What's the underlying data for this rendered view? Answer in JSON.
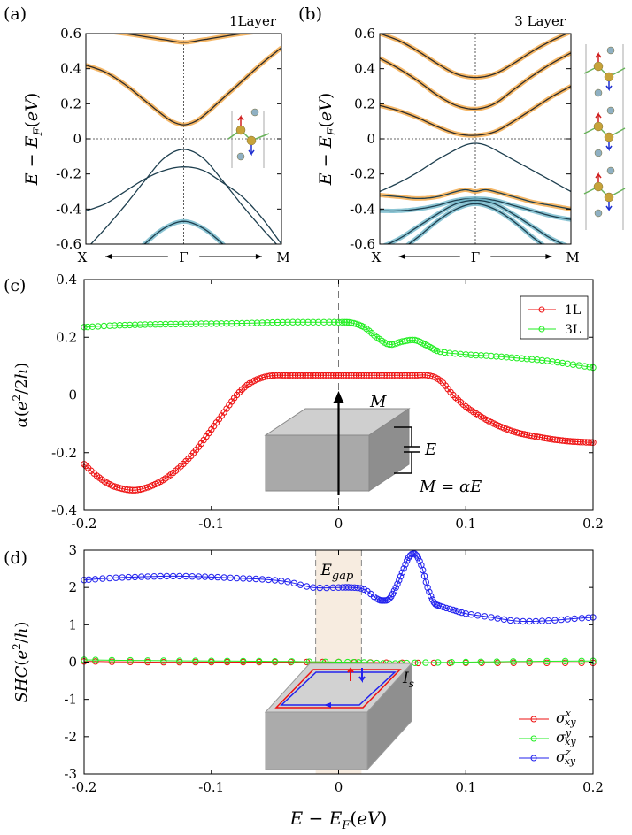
{
  "chart_data": [
    {
      "panel": "(a)",
      "type": "line",
      "title": "1Layer",
      "ylabel": "E − E_F(eV)",
      "ylim": [
        -0.6,
        0.6
      ],
      "yticks": [
        "0.6",
        "0.4",
        "0.2",
        "0",
        "-0.2",
        "-0.4",
        "-0.6"
      ],
      "xtick_labels": {
        "left": "X",
        "center": "Γ",
        "right": "M"
      },
      "bands": [
        {
          "color": "#2b2b2b",
          "highlight": "#f2a541",
          "x": [
            0,
            0.2,
            0.4,
            0.5,
            0.6,
            0.8,
            1
          ],
          "y": [
            0.625,
            0.6,
            0.565,
            0.55,
            0.565,
            0.6,
            0.625
          ]
        },
        {
          "color": "#2b2b2b",
          "highlight": "#f2a541",
          "x": [
            0,
            0.1,
            0.2,
            0.3,
            0.4,
            0.45,
            0.5,
            0.55,
            0.6,
            0.7,
            0.8,
            0.9,
            1
          ],
          "y": [
            0.42,
            0.38,
            0.31,
            0.22,
            0.13,
            0.095,
            0.08,
            0.095,
            0.13,
            0.23,
            0.33,
            0.43,
            0.52
          ]
        },
        {
          "color": "#1e3f4f",
          "highlight": "",
          "x": [
            0,
            0.1,
            0.2,
            0.3,
            0.4,
            0.5,
            0.6,
            0.7,
            0.8,
            0.9,
            1
          ],
          "y": [
            -0.63,
            -0.51,
            -0.38,
            -0.24,
            -0.11,
            -0.06,
            -0.11,
            -0.24,
            -0.38,
            -0.51,
            -0.63
          ]
        },
        {
          "color": "#1e3f4f",
          "highlight": "",
          "x": [
            0,
            0.1,
            0.2,
            0.3,
            0.4,
            0.5,
            0.6,
            0.7,
            0.8,
            0.9,
            1
          ],
          "y": [
            -0.41,
            -0.37,
            -0.3,
            -0.23,
            -0.18,
            -0.16,
            -0.18,
            -0.25,
            -0.33,
            -0.45,
            -0.6
          ]
        },
        {
          "color": "#1e3f4f",
          "highlight": "#6fb7c9",
          "x": [
            0,
            0.1,
            0.2,
            0.3,
            0.4,
            0.5,
            0.6,
            0.7,
            0.8,
            0.9,
            1
          ],
          "y": [
            -0.88,
            -0.8,
            -0.71,
            -0.6,
            -0.51,
            -0.47,
            -0.51,
            -0.6,
            -0.71,
            -0.8,
            -0.88
          ]
        }
      ]
    },
    {
      "panel": "(b)",
      "type": "line",
      "title": "3 Layer",
      "ylabel": "E − E_F(eV)",
      "ylim": [
        -0.6,
        0.6
      ],
      "yticks": [
        "0.6",
        "0.4",
        "0.2",
        "0",
        "-0.2",
        "-0.4",
        "-0.6"
      ],
      "xtick_labels": {
        "left": "X",
        "center": "Γ",
        "right": "M"
      },
      "bands": [
        {
          "color": "#2b2b2b",
          "highlight": "#f2a541",
          "x": [
            0,
            0.1,
            0.2,
            0.3,
            0.4,
            0.5,
            0.6,
            0.7,
            0.8,
            0.9,
            1
          ],
          "y": [
            0.6,
            0.56,
            0.5,
            0.43,
            0.37,
            0.35,
            0.37,
            0.43,
            0.5,
            0.56,
            0.61
          ]
        },
        {
          "color": "#2b2b2b",
          "highlight": "#f2a541",
          "x": [
            0,
            0.1,
            0.2,
            0.3,
            0.4,
            0.5,
            0.6,
            0.7,
            0.8,
            0.9,
            1
          ],
          "y": [
            0.46,
            0.4,
            0.33,
            0.25,
            0.19,
            0.17,
            0.2,
            0.28,
            0.36,
            0.43,
            0.49
          ]
        },
        {
          "color": "#2b2b2b",
          "highlight": "#f2a541",
          "x": [
            0,
            0.1,
            0.2,
            0.3,
            0.4,
            0.5,
            0.6,
            0.7,
            0.8,
            0.9,
            1
          ],
          "y": [
            0.19,
            0.16,
            0.12,
            0.07,
            0.03,
            0.02,
            0.04,
            0.1,
            0.17,
            0.24,
            0.3
          ]
        },
        {
          "color": "#1e3f4f",
          "highlight": "",
          "x": [
            0,
            0.1,
            0.2,
            0.3,
            0.4,
            0.45,
            0.5,
            0.55,
            0.6,
            0.7,
            0.8,
            0.9,
            1
          ],
          "y": [
            -0.3,
            -0.25,
            -0.19,
            -0.12,
            -0.06,
            -0.035,
            -0.025,
            -0.035,
            -0.06,
            -0.12,
            -0.18,
            -0.24,
            -0.3
          ]
        },
        {
          "color": "#1e3f4f",
          "highlight": "#f2a541",
          "x": [
            0,
            0.1,
            0.2,
            0.3,
            0.4,
            0.45,
            0.5,
            0.55,
            0.6,
            0.7,
            0.8,
            0.9,
            1
          ],
          "y": [
            -0.32,
            -0.33,
            -0.34,
            -0.33,
            -0.3,
            -0.29,
            -0.3,
            -0.29,
            -0.3,
            -0.33,
            -0.36,
            -0.38,
            -0.4
          ]
        },
        {
          "color": "#1e3f4f",
          "highlight": "#6fb7c9",
          "x": [
            0,
            0.1,
            0.2,
            0.3,
            0.4,
            0.5,
            0.6,
            0.7,
            0.8,
            0.9,
            1
          ],
          "y": [
            -0.41,
            -0.41,
            -0.4,
            -0.38,
            -0.35,
            -0.34,
            -0.35,
            -0.38,
            -0.41,
            -0.44,
            -0.46
          ]
        },
        {
          "color": "#1e3f4f",
          "highlight": "#6fb7c9",
          "x": [
            0,
            0.1,
            0.2,
            0.3,
            0.4,
            0.5,
            0.6,
            0.7,
            0.8,
            0.9,
            1
          ],
          "y": [
            -0.62,
            -0.57,
            -0.5,
            -0.43,
            -0.37,
            -0.35,
            -0.37,
            -0.43,
            -0.5,
            -0.57,
            -0.62
          ]
        },
        {
          "color": "#1e3f4f",
          "highlight": "#6fb7c9",
          "x": [
            0,
            0.1,
            0.2,
            0.3,
            0.4,
            0.5,
            0.6,
            0.7,
            0.8,
            0.9,
            1
          ],
          "y": [
            -0.7,
            -0.64,
            -0.56,
            -0.47,
            -0.4,
            -0.37,
            -0.4,
            -0.47,
            -0.56,
            -0.64,
            -0.7
          ]
        }
      ]
    },
    {
      "panel": "(c)",
      "type": "line",
      "ylabel": "α(e²/2h)",
      "xlim": [
        -0.2,
        0.2
      ],
      "ylim": [
        -0.4,
        0.4
      ],
      "xticks": [
        "-0.2",
        "-0.1",
        "0",
        "0.1",
        "0.2"
      ],
      "yticks": [
        "0.4",
        "0.2",
        "0",
        "-0.2",
        "-0.4"
      ],
      "legend": "top-right",
      "series": [
        {
          "name": "1L",
          "color": "#ee1111",
          "x": [
            -0.2,
            -0.19,
            -0.18,
            -0.17,
            -0.16,
            -0.15,
            -0.14,
            -0.13,
            -0.12,
            -0.11,
            -0.1,
            -0.09,
            -0.08,
            -0.07,
            -0.06,
            -0.05,
            -0.04,
            -0.03,
            -0.02,
            -0.01,
            0,
            0.01,
            0.02,
            0.03,
            0.04,
            0.05,
            0.06,
            0.07,
            0.08,
            0.09,
            0.1,
            0.11,
            0.12,
            0.13,
            0.14,
            0.15,
            0.16,
            0.17,
            0.18,
            0.19,
            0.2
          ],
          "y": [
            -0.24,
            -0.28,
            -0.31,
            -0.325,
            -0.33,
            -0.32,
            -0.3,
            -0.27,
            -0.23,
            -0.18,
            -0.12,
            -0.06,
            0.0,
            0.04,
            0.06,
            0.068,
            0.068,
            0.068,
            0.068,
            0.068,
            0.068,
            0.068,
            0.068,
            0.068,
            0.068,
            0.068,
            0.068,
            0.068,
            0.05,
            0.0,
            -0.04,
            -0.07,
            -0.095,
            -0.115,
            -0.13,
            -0.14,
            -0.148,
            -0.155,
            -0.16,
            -0.163,
            -0.165
          ]
        },
        {
          "name": "3L",
          "color": "#22ee22",
          "x": [
            -0.2,
            -0.18,
            -0.16,
            -0.14,
            -0.12,
            -0.1,
            -0.08,
            -0.06,
            -0.04,
            -0.02,
            0,
            0.01,
            0.02,
            0.03,
            0.04,
            0.05,
            0.06,
            0.07,
            0.08,
            0.1,
            0.12,
            0.14,
            0.16,
            0.18,
            0.2
          ],
          "y": [
            0.235,
            0.24,
            0.243,
            0.245,
            0.246,
            0.247,
            0.248,
            0.25,
            0.252,
            0.252,
            0.252,
            0.25,
            0.235,
            0.2,
            0.175,
            0.185,
            0.19,
            0.17,
            0.15,
            0.14,
            0.135,
            0.128,
            0.12,
            0.108,
            0.095
          ]
        }
      ],
      "inset_labels": {
        "m": "M",
        "e": "E",
        "relation": "M = αE"
      }
    },
    {
      "panel": "(d)",
      "type": "line",
      "ylabel": "SHC(e²/h)",
      "xlabel": "E − E_F(eV)",
      "xlim": [
        -0.2,
        0.2
      ],
      "ylim": [
        -3,
        3
      ],
      "xticks": [
        "-0.2",
        "-0.1",
        "0",
        "0.1",
        "0.2"
      ],
      "yticks": [
        "3",
        "2",
        "1",
        "0",
        "-1",
        "-2",
        "-3"
      ],
      "legend": "bottom-right",
      "gap_band": {
        "x0": -0.018,
        "x1": 0.018,
        "label": "E_gap"
      },
      "series": [
        {
          "name": "σ^x_xy",
          "color": "#ee1111",
          "x": [
            -0.2,
            -0.15,
            -0.1,
            -0.05,
            0,
            0.05,
            0.1,
            0.15,
            0.2
          ],
          "y": [
            0.02,
            0.0,
            0.0,
            0.0,
            0.0,
            -0.02,
            -0.02,
            -0.02,
            -0.02
          ]
        },
        {
          "name": "σ^y_xy",
          "color": "#22ee22",
          "x": [
            -0.2,
            -0.15,
            -0.1,
            -0.05,
            0,
            0.02,
            0.04,
            0.06,
            0.1,
            0.15,
            0.2
          ],
          "y": [
            0.06,
            0.04,
            0.03,
            0.02,
            0.0,
            -0.01,
            -0.04,
            -0.02,
            0.0,
            0.02,
            0.03
          ]
        },
        {
          "name": "σ^z_xy",
          "color": "#2222ee",
          "x": [
            -0.2,
            -0.18,
            -0.16,
            -0.14,
            -0.12,
            -0.1,
            -0.08,
            -0.06,
            -0.04,
            -0.02,
            0,
            0.01,
            0.02,
            0.03,
            0.035,
            0.04,
            0.045,
            0.05,
            0.055,
            0.06,
            0.065,
            0.07,
            0.075,
            0.08,
            0.09,
            0.1,
            0.12,
            0.14,
            0.16,
            0.18,
            0.2
          ],
          "y": [
            2.2,
            2.25,
            2.28,
            2.3,
            2.3,
            2.28,
            2.25,
            2.22,
            2.15,
            2.0,
            2.0,
            2.0,
            1.95,
            1.7,
            1.65,
            1.7,
            2.0,
            2.4,
            2.8,
            2.9,
            2.6,
            2.0,
            1.6,
            1.5,
            1.4,
            1.3,
            1.2,
            1.1,
            1.1,
            1.15,
            1.2
          ]
        }
      ],
      "inset_labels": {
        "current": "I_s"
      }
    }
  ]
}
